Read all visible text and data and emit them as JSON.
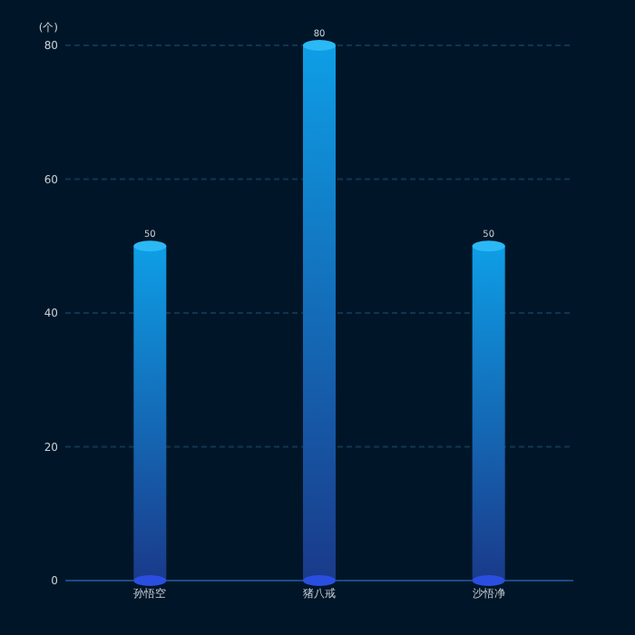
{
  "chart_data": {
    "type": "bar",
    "ylabel": "(个)",
    "categories": [
      "孙悟空",
      "猪八戒",
      "沙悟净"
    ],
    "values": [
      50,
      80,
      50
    ],
    "color": "#0e9ee6",
    "ylim": [
      0,
      80
    ],
    "yticks": [
      0,
      20,
      40,
      60,
      80
    ],
    "grid": "y",
    "data_labels": true
  }
}
